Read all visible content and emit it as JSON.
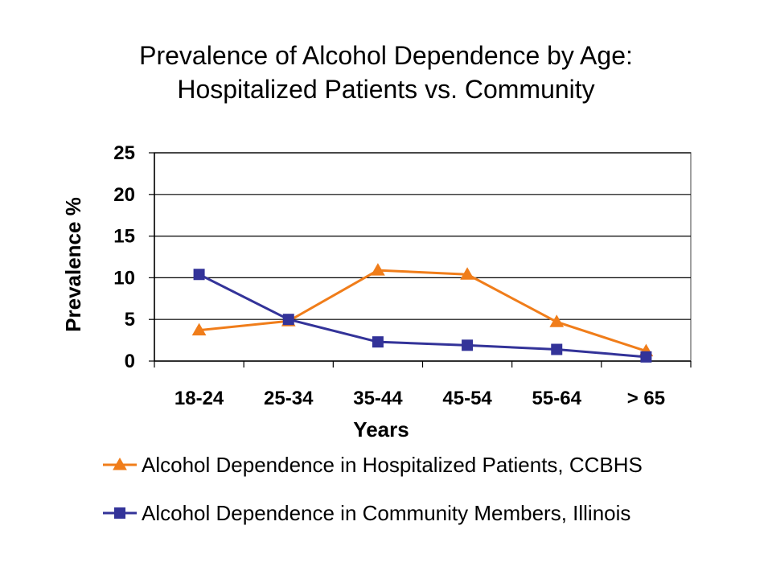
{
  "chart_data": {
    "type": "line",
    "title_line1": "Prevalence of Alcohol Dependence by Age:",
    "title_line2": "Hospitalized Patients vs. Community",
    "xlabel": "Years",
    "ylabel": "Prevalence %",
    "categories": [
      "18-24",
      "25-34",
      "35-44",
      "45-54",
      "55-64",
      "> 65"
    ],
    "ylim": [
      0,
      25
    ],
    "yticks": [
      0,
      5,
      10,
      15,
      20,
      25
    ],
    "grid": true,
    "legend_position": "bottom",
    "series": [
      {
        "name": "Alcohol Dependence in Hospitalized Patients, CCBHS",
        "color": "#F07D1A",
        "marker": "triangle",
        "values": [
          3.7,
          4.8,
          10.9,
          10.4,
          4.7,
          1.2
        ]
      },
      {
        "name": "Alcohol Dependence in Community Members, Illinois",
        "color": "#333399",
        "marker": "square",
        "values": [
          10.4,
          5.0,
          2.3,
          1.9,
          1.4,
          0.5
        ]
      }
    ]
  }
}
